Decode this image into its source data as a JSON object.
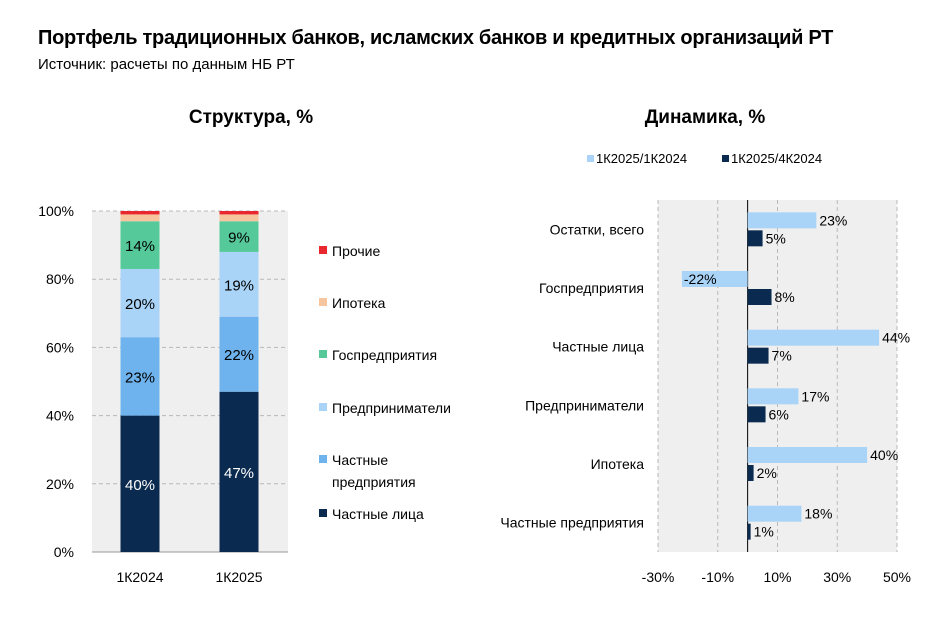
{
  "header": {
    "title": "Портфель традиционных банков, исламских банков и кредитных организаций РТ",
    "subtitle": "Источник: расчеты по данным НБ РТ"
  },
  "colors": {
    "private_individuals": "#0b2a4f",
    "private_enterprises": "#6eb3ee",
    "entrepreneurs": "#a9d3f7",
    "state_enterprises": "#55c99a",
    "mortgage": "#f7c59d",
    "other": "#e8282e",
    "series_yoy": "#a9d3f7",
    "series_qoq": "#0b2a4f",
    "plot_bg": "#efefef",
    "grid": "#b8b8b8"
  },
  "chart_data": [
    {
      "type": "bar",
      "stacked": true,
      "title": "Структура, %",
      "categories": [
        "1К2024",
        "1К2025"
      ],
      "ylim": [
        0,
        100
      ],
      "yticks": [
        "0%",
        "20%",
        "40%",
        "60%",
        "80%",
        "100%"
      ],
      "grid": true,
      "legend_position": "right",
      "series": [
        {
          "name": "Частные лица",
          "color_key": "private_individuals",
          "values": [
            40,
            47
          ],
          "labels": [
            "40%",
            "47%"
          ],
          "label_color": "#ffffff"
        },
        {
          "name": "Частные предприятия",
          "color_key": "private_enterprises",
          "values": [
            23,
            22
          ],
          "labels": [
            "23%",
            "22%"
          ],
          "label_color": "#000000"
        },
        {
          "name": "Предприниматели",
          "color_key": "entrepreneurs",
          "values": [
            20,
            19
          ],
          "labels": [
            "20%",
            "19%"
          ],
          "label_color": "#000000"
        },
        {
          "name": "Госпредприятия",
          "color_key": "state_enterprises",
          "values": [
            14,
            9
          ],
          "labels": [
            "14%",
            "9%"
          ],
          "label_color": "#000000"
        },
        {
          "name": "Ипотека",
          "color_key": "mortgage",
          "values": [
            2,
            2
          ],
          "labels": [],
          "label_color": "#000000"
        },
        {
          "name": "Прочие",
          "color_key": "other",
          "values": [
            1,
            1
          ],
          "labels": [],
          "label_color": "#000000"
        }
      ],
      "legend_order": [
        "Прочие",
        "Ипотека",
        "Госпредприятия",
        "Предприниматели",
        "Частные предприятия",
        "Частные лица"
      ]
    },
    {
      "type": "bar",
      "orientation": "horizontal",
      "title": "Динамика, %",
      "categories": [
        "Остатки, всего",
        "Госпредприятия",
        "Частные лица",
        "Предприниматели",
        "Ипотека",
        "Частные предприятия"
      ],
      "xlim": [
        -30,
        50
      ],
      "xticks": [
        "-30%",
        "-10%",
        "10%",
        "30%",
        "50%"
      ],
      "grid": true,
      "legend_position": "top",
      "series": [
        {
          "name": "1К2025/1К2024",
          "color_key": "series_yoy",
          "values": [
            23,
            -22,
            44,
            17,
            40,
            18
          ],
          "labels": [
            "23%",
            "-22%",
            "44%",
            "17%",
            "40%",
            "18%"
          ]
        },
        {
          "name": "1К2025/4К2024",
          "color_key": "series_qoq",
          "values": [
            5,
            8,
            7,
            6,
            2,
            1
          ],
          "labels": [
            "5%",
            "8%",
            "7%",
            "6%",
            "2%",
            "1%"
          ]
        }
      ]
    }
  ]
}
